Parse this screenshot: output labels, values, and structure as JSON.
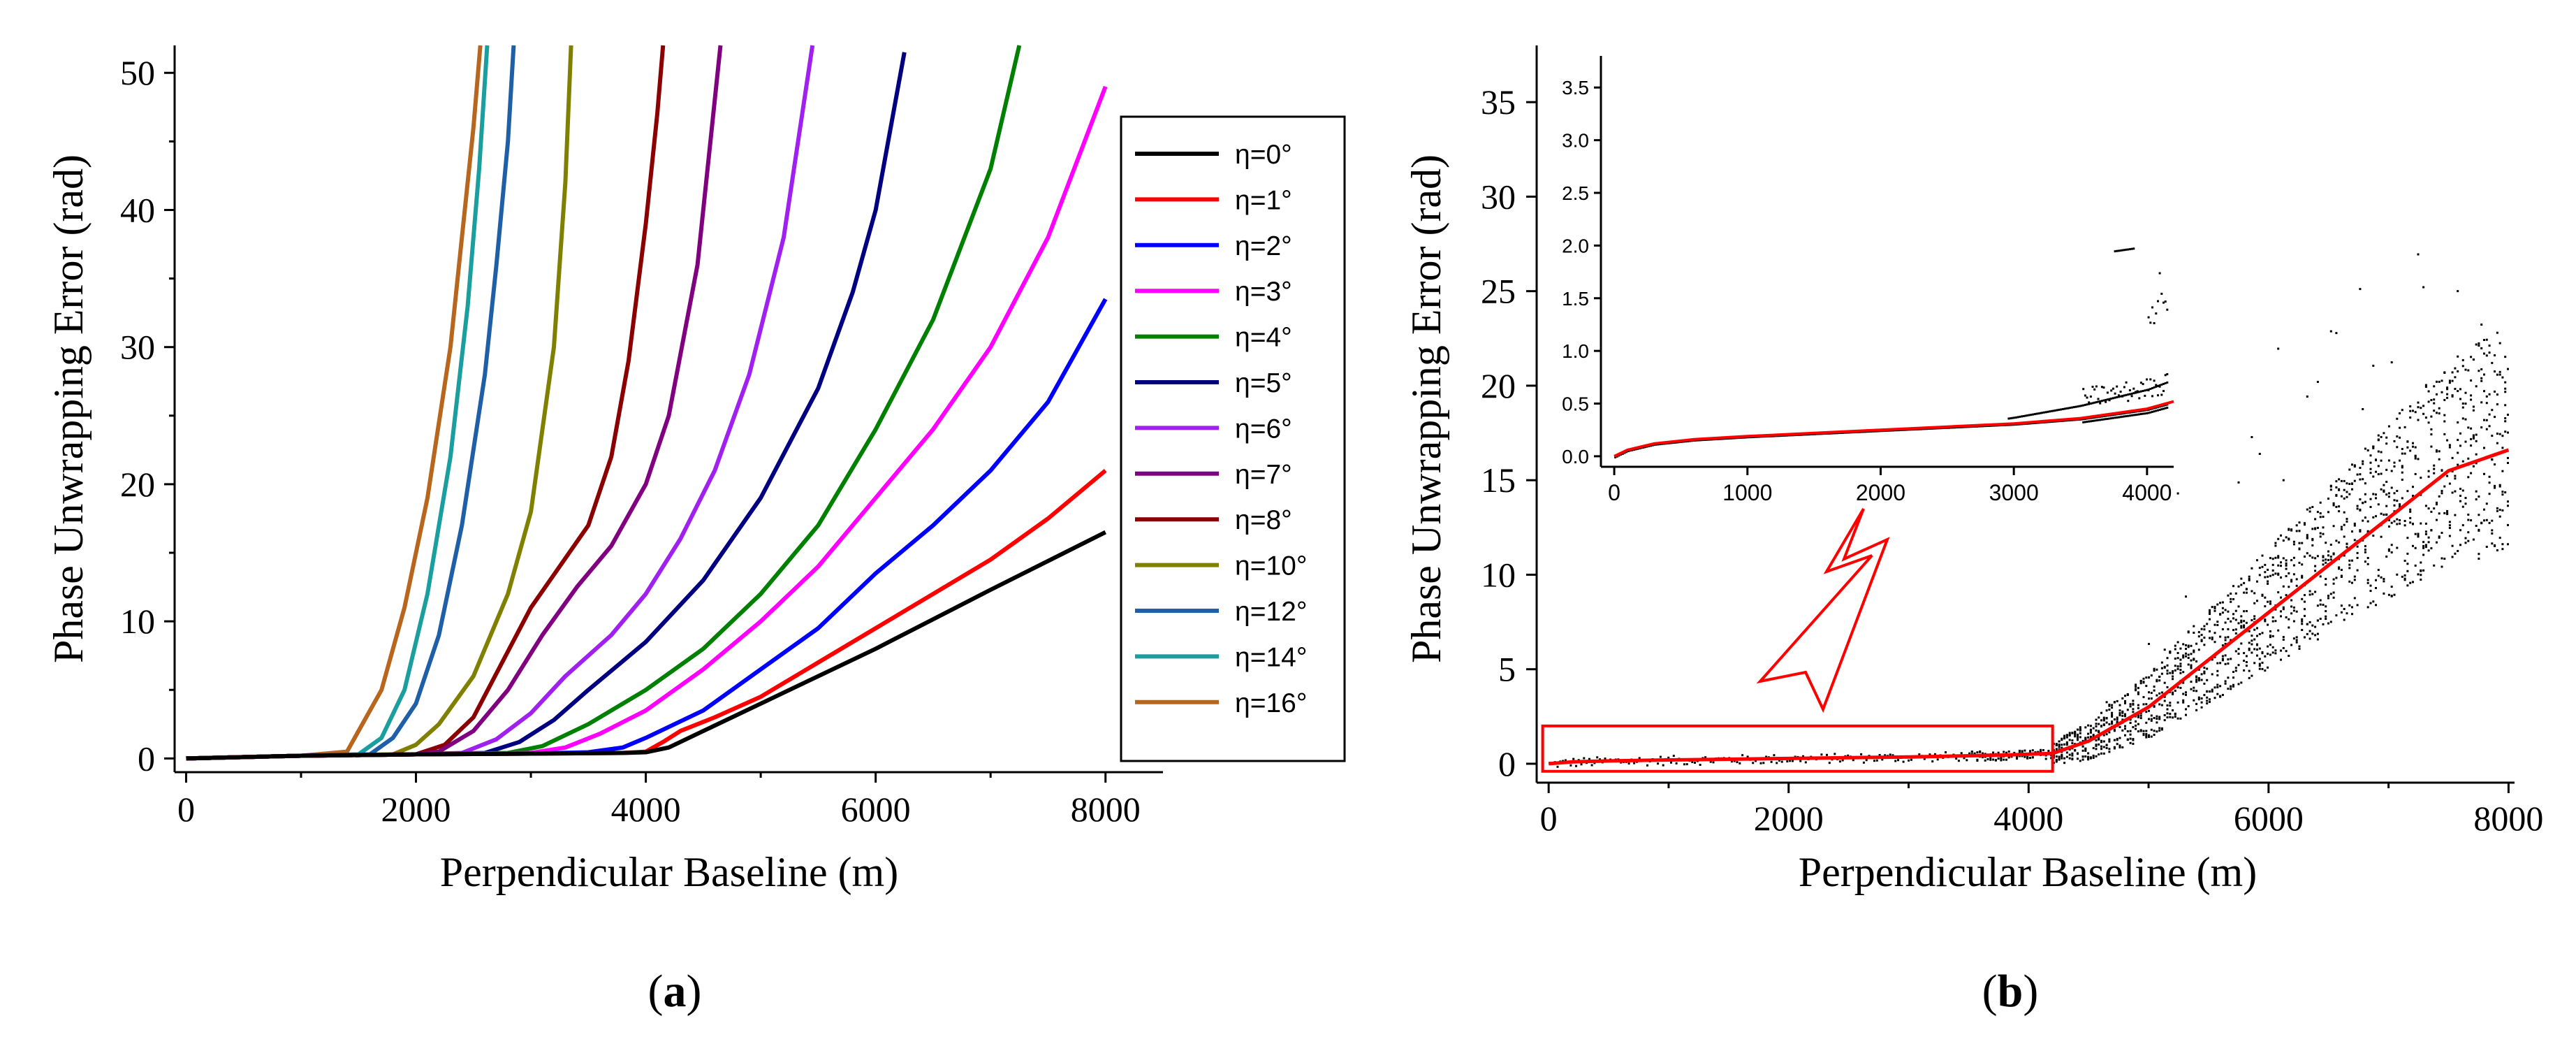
{
  "chart_data": [
    {
      "panel": "a",
      "type": "line",
      "panel_label": {
        "open": "(",
        "letter": "a",
        "close": ")"
      },
      "xlabel": "Perpendicular Baseline (m)",
      "ylabel": "Phase Unwrapping Error (rad)",
      "xlim": [
        -100,
        8500
      ],
      "ylim": [
        -1,
        52
      ],
      "xticks": [
        "0",
        "2000",
        "4000",
        "6000",
        "8000"
      ],
      "yticks": [
        "0",
        "10",
        "20",
        "30",
        "40",
        "50"
      ],
      "legend_position": "right",
      "series": [
        {
          "name": "η=0°",
          "color": "#000000",
          "x": [
            0,
            1000,
            2000,
            3000,
            3800,
            4000,
            4200,
            4500,
            5000,
            6000,
            7000,
            8000
          ],
          "y": [
            0,
            0.2,
            0.3,
            0.35,
            0.4,
            0.45,
            0.8,
            2,
            4,
            8,
            12.3,
            16.5
          ]
        },
        {
          "name": "η=1°",
          "color": "#ff0000",
          "x": [
            0,
            1000,
            2000,
            3000,
            3800,
            4000,
            4150,
            4300,
            4600,
            5000,
            5500,
            6000,
            6500,
            7000,
            7500,
            8000
          ],
          "y": [
            0,
            0.2,
            0.3,
            0.35,
            0.4,
            0.5,
            1.2,
            2.0,
            3.0,
            4.5,
            7,
            9.5,
            12,
            14.5,
            17.5,
            21
          ]
        },
        {
          "name": "η=2°",
          "color": "#0000ff",
          "x": [
            0,
            1000,
            2000,
            3000,
            3500,
            3800,
            4000,
            4500,
            5000,
            5500,
            6000,
            6500,
            7000,
            7500,
            8000
          ],
          "y": [
            0,
            0.2,
            0.3,
            0.35,
            0.45,
            0.8,
            1.5,
            3.5,
            6.5,
            9.5,
            13.5,
            17,
            21,
            26,
            33.5
          ]
        },
        {
          "name": "η=3°",
          "color": "#ff00ff",
          "x": [
            0,
            1000,
            2000,
            3000,
            3300,
            3600,
            4000,
            4500,
            5000,
            5500,
            6000,
            6500,
            7000,
            7500,
            8000
          ],
          "y": [
            0,
            0.2,
            0.3,
            0.4,
            0.8,
            1.8,
            3.5,
            6.5,
            10,
            14,
            19,
            24,
            30,
            38,
            49
          ]
        },
        {
          "name": "η=4°",
          "color": "#008000",
          "x": [
            0,
            1000,
            2000,
            2800,
            3100,
            3500,
            4000,
            4500,
            5000,
            5500,
            6000,
            6500,
            7000,
            7250
          ],
          "y": [
            0,
            0.2,
            0.3,
            0.4,
            0.9,
            2.5,
            5,
            8,
            12,
            17,
            24,
            32,
            43,
            52
          ]
        },
        {
          "name": "η=5°",
          "color": "#000080",
          "x": [
            0,
            1000,
            2000,
            2600,
            2900,
            3200,
            3500,
            4000,
            4500,
            5000,
            5500,
            5800,
            6000,
            6250
          ],
          "y": [
            0,
            0.2,
            0.3,
            0.4,
            1.2,
            2.8,
            5,
            8.5,
            13,
            19,
            27,
            34,
            40,
            51.5
          ]
        },
        {
          "name": "η=6°",
          "color": "#a020f0",
          "x": [
            0,
            1000,
            2000,
            2400,
            2700,
            3000,
            3300,
            3700,
            4000,
            4300,
            4600,
            4900,
            5200,
            5450
          ],
          "y": [
            0,
            0.2,
            0.3,
            0.4,
            1.4,
            3.3,
            6,
            9,
            12,
            16,
            21,
            28,
            38,
            52
          ]
        },
        {
          "name": "η=7°",
          "color": "#800080",
          "x": [
            0,
            1000,
            2000,
            2200,
            2500,
            2800,
            3100,
            3400,
            3700,
            4000,
            4200,
            4450,
            4650
          ],
          "y": [
            0,
            0.2,
            0.3,
            0.5,
            2,
            5,
            9,
            12.5,
            15.5,
            20,
            25,
            36,
            52
          ]
        },
        {
          "name": "η=8°",
          "color": "#8b0000",
          "x": [
            0,
            1000,
            2000,
            2250,
            2500,
            2750,
            3000,
            3250,
            3500,
            3700,
            3850,
            4000,
            4100,
            4150
          ],
          "y": [
            0,
            0.2,
            0.3,
            1,
            3,
            7,
            11,
            14,
            17,
            22,
            29,
            39,
            47,
            52
          ]
        },
        {
          "name": "η=10°",
          "color": "#808000",
          "x": [
            0,
            1000,
            1800,
            2000,
            2200,
            2500,
            2800,
            3000,
            3200,
            3300,
            3350
          ],
          "y": [
            0,
            0.2,
            0.3,
            1,
            2.5,
            6,
            12,
            18,
            30,
            42,
            52
          ]
        },
        {
          "name": "η=12°",
          "color": "#1f5fa8",
          "x": [
            0,
            1000,
            1600,
            1800,
            2000,
            2200,
            2400,
            2600,
            2700,
            2800,
            2850
          ],
          "y": [
            0,
            0.2,
            0.3,
            1.5,
            4,
            9,
            17,
            28,
            36,
            45,
            52
          ]
        },
        {
          "name": "η=14°",
          "color": "#1a9e9e",
          "x": [
            0,
            1000,
            1500,
            1700,
            1900,
            2100,
            2300,
            2450,
            2550,
            2620
          ],
          "y": [
            0,
            0.2,
            0.3,
            1.5,
            5,
            12,
            22,
            33,
            43,
            52
          ]
        },
        {
          "name": "η=16°",
          "color": "#b8651e",
          "x": [
            0,
            1000,
            1400,
            1500,
            1700,
            1900,
            2100,
            2300,
            2400,
            2500,
            2560
          ],
          "y": [
            0,
            0.2,
            0.5,
            2,
            5,
            11,
            19,
            30,
            38,
            46,
            52
          ]
        }
      ]
    },
    {
      "panel": "b",
      "type": "scatter",
      "panel_label": {
        "open": "(",
        "letter": "b",
        "close": ")"
      },
      "xlabel": "Perpendicular Baseline (m)",
      "ylabel": "Phase Unwrapping Error (rad)",
      "xlim": [
        -100,
        8050
      ],
      "ylim": [
        -1,
        38
      ],
      "xticks": [
        "0",
        "2000",
        "4000",
        "6000",
        "8000"
      ],
      "yticks": [
        "0",
        "5",
        "10",
        "15",
        "20",
        "25",
        "30",
        "35"
      ],
      "fit_curve": {
        "color": "#ff0000",
        "x": [
          0,
          200,
          500,
          1000,
          2000,
          3000,
          3800,
          4200,
          4500,
          5000,
          5500,
          6000,
          6500,
          7000,
          7500,
          8000
        ],
        "y": [
          0,
          0.1,
          0.15,
          0.2,
          0.28,
          0.36,
          0.46,
          0.55,
          1.2,
          3.0,
          5.5,
          8.0,
          10.5,
          13.0,
          15.5,
          16.6
        ]
      },
      "scatter_color": "#000000",
      "highlight_box": {
        "x_range": [
          -50,
          4200
        ],
        "y_range": [
          -0.4,
          2.0
        ],
        "color": "#ff0000"
      },
      "inset": {
        "xlim": [
          -100,
          4200
        ],
        "ylim": [
          -0.1,
          3.8
        ],
        "xticks": [
          "0",
          "1000",
          "2000",
          "3000",
          "4000"
        ],
        "yticks": [
          "0.0",
          "0.5",
          "1.0",
          "1.5",
          "2.0",
          "2.5",
          "3.0",
          "3.5"
        ],
        "fit_curve": {
          "x": [
            0,
            100,
            300,
            600,
            1000,
            1500,
            2000,
            2500,
            3000,
            3500,
            4000,
            4200
          ],
          "y": [
            0,
            0.06,
            0.12,
            0.16,
            0.19,
            0.22,
            0.25,
            0.28,
            0.31,
            0.36,
            0.45,
            0.52
          ]
        }
      }
    }
  ]
}
